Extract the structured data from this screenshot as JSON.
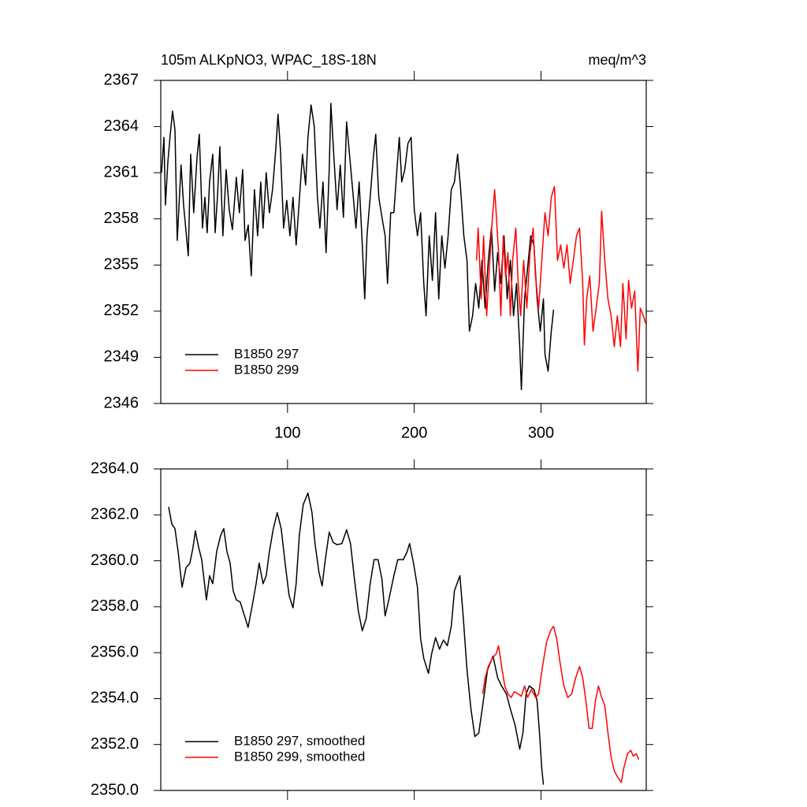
{
  "chart_data": [
    {
      "type": "line",
      "title": "105m ALKpNO3, WPAC_18S-18N",
      "units_label": "meq/m^3",
      "xlim": [
        0,
        383
      ],
      "xticks": [
        100,
        200,
        300
      ],
      "ylim": [
        2346,
        2367
      ],
      "yticks": [
        2346,
        2349,
        2352,
        2355,
        2358,
        2361,
        2364,
        2367
      ],
      "legend": "lower left",
      "series": [
        {
          "name": "B1850 297",
          "color": "#000000",
          "x": [
            0.6,
            2.5,
            3.7,
            5.6,
            7.5,
            9.3,
            11.2,
            13,
            16,
            18,
            21.7,
            23.6,
            26,
            28.6,
            30.4,
            32.9,
            34.8,
            36.6,
            38.5,
            41,
            42.9,
            44.7,
            46.6,
            49,
            51.6,
            54,
            56.5,
            59.6,
            62,
            64.6,
            66.5,
            69,
            71.4,
            73.9,
            76.4,
            78.9,
            80.7,
            83.2,
            85.7,
            88.2,
            90.7,
            92.5,
            94.4,
            96.9,
            99.4,
            101.9,
            104.3,
            106.8,
            109.3,
            111.8,
            114.3,
            116.1,
            118.6,
            121.1,
            123.6,
            125.5,
            128,
            130.4,
            132.9,
            134.2,
            136.6,
            139.1,
            141.6,
            144.1,
            146.6,
            149.1,
            151.6,
            154,
            156.5,
            159,
            160.9,
            162.7,
            165.2,
            167.7,
            169.6,
            172,
            174.5,
            177,
            178.9,
            181.4,
            183.9,
            186.3,
            188.2,
            190.1,
            192.5,
            195,
            197.5,
            200,
            202.5,
            205,
            207.5,
            209.3,
            211.8,
            214.3,
            216.8,
            219.3,
            221.7,
            224.2,
            226.7,
            229.2,
            231.7,
            234.2,
            236.6,
            239.1,
            241.6,
            243.5,
            246,
            248.4,
            250.9,
            253.4,
            255.9,
            258.4,
            260.9,
            263.4,
            265.8,
            268.3,
            270.8,
            273.3,
            275.8,
            278.3,
            280.7,
            283.2,
            284.5,
            287,
            289.4,
            291.9,
            294.4,
            296.9,
            299.4,
            301.9,
            303.1,
            305.6,
            308.1,
            309.9
          ],
          "values": [
            2361,
            2363.3,
            2358.9,
            2361.7,
            2363.5,
            2365,
            2363.8,
            2356.6,
            2361.5,
            2358.9,
            2355.6,
            2362.2,
            2358.4,
            2362,
            2363.5,
            2357.4,
            2359.4,
            2357.1,
            2360.4,
            2362.2,
            2357.1,
            2359.4,
            2362.7,
            2356.9,
            2361.2,
            2358.6,
            2357.3,
            2360.7,
            2358.4,
            2361.2,
            2356.6,
            2357.6,
            2354.3,
            2359.9,
            2356.9,
            2360.4,
            2357.4,
            2361,
            2358.4,
            2359.9,
            2362.5,
            2364.8,
            2362.5,
            2357.4,
            2359.2,
            2356.9,
            2359.4,
            2356.3,
            2359.2,
            2362.2,
            2360.2,
            2363.3,
            2365.4,
            2364,
            2359.4,
            2357.4,
            2360.4,
            2355.8,
            2361.2,
            2365.5,
            2362,
            2358.6,
            2361.5,
            2358.1,
            2364.3,
            2362,
            2359.7,
            2357.4,
            2360.4,
            2356.3,
            2352.8,
            2356.9,
            2359.4,
            2362,
            2363.5,
            2359.4,
            2358.1,
            2356.9,
            2353.8,
            2358.4,
            2358.4,
            2361.2,
            2363.3,
            2360.4,
            2361.2,
            2362.9,
            2363.3,
            2358.6,
            2356.9,
            2358.4,
            2353.8,
            2351.7,
            2356.9,
            2354,
            2358.4,
            2352.8,
            2356.9,
            2354.8,
            2356.9,
            2359.9,
            2360.4,
            2362.2,
            2359.9,
            2356.9,
            2355.3,
            2350.7,
            2351.7,
            2353.8,
            2352.2,
            2355.3,
            2352.2,
            2355.3,
            2357.4,
            2353.3,
            2355.8,
            2353.8,
            2356.9,
            2352.8,
            2355.3,
            2351.7,
            2353.8,
            2349.7,
            2346.9,
            2352.8,
            2354.8,
            2356.9,
            2356.3,
            2352.8,
            2350.7,
            2352.8,
            2349.2,
            2348.1,
            2350.7,
            2352.1
          ]
        },
        {
          "name": "B1850 299",
          "color": "#ff0000",
          "x": [
            249.1,
            250.4,
            252.8,
            254.7,
            257.1,
            259.6,
            261.5,
            263.4,
            264.6,
            266.5,
            268.3,
            270.2,
            272,
            273.9,
            275.8,
            277.6,
            280.1,
            282,
            283.9,
            286.3,
            288.8,
            291.3,
            293.8,
            295.6,
            298.1,
            300.6,
            303.1,
            305.6,
            308.1,
            310.6,
            313,
            315.5,
            318,
            320.5,
            323,
            325.5,
            328,
            330.4,
            332.9,
            334.2,
            336,
            338.5,
            341,
            343.5,
            346,
            347.8,
            350.3,
            352.8,
            355.3,
            357.8,
            360.2,
            362.7,
            364.6,
            367.1,
            369.1,
            371.4,
            373.9,
            376.4,
            378.3,
            380.7,
            382.6
          ],
          "values": [
            2355.3,
            2357.4,
            2352.8,
            2356.9,
            2351.7,
            2355.3,
            2357.9,
            2359.9,
            2358.4,
            2355.8,
            2351.7,
            2356.9,
            2354.3,
            2355.8,
            2351.7,
            2355.3,
            2357.4,
            2353.8,
            2351.7,
            2355.3,
            2352.2,
            2355.8,
            2357.4,
            2354.3,
            2352.2,
            2355.3,
            2358.4,
            2356.9,
            2359.4,
            2360.1,
            2355.3,
            2356.3,
            2354.8,
            2356.3,
            2353.8,
            2355.3,
            2356.9,
            2357.4,
            2353.8,
            2349.8,
            2352.8,
            2354.3,
            2350.7,
            2352.2,
            2353.8,
            2358.5,
            2355.3,
            2352.8,
            2351.7,
            2349.7,
            2351.7,
            2349.7,
            2353.8,
            2350.2,
            2354,
            2352.2,
            2353.3,
            2348.1,
            2352.2,
            2351.7,
            2351.2
          ]
        }
      ]
    },
    {
      "type": "line",
      "xlim": [
        0,
        383
      ],
      "xticks": [
        100,
        200,
        300
      ],
      "xtick_labels": false,
      "ylim": [
        2350,
        2364
      ],
      "yticks": [
        {
          "value": 2350,
          "label": "2350.0"
        },
        {
          "value": 2352,
          "label": "2352.0"
        },
        {
          "value": 2354,
          "label": "2354.0"
        },
        {
          "value": 2356,
          "label": "2356.0"
        },
        {
          "value": 2358,
          "label": "2358.0"
        },
        {
          "value": 2360,
          "label": "2360.0"
        },
        {
          "value": 2362,
          "label": "2362.0"
        },
        {
          "value": 2364,
          "label": "2364.0"
        }
      ],
      "legend": "lower left",
      "series": [
        {
          "name": "B1850 297, smoothed",
          "color": "#000000",
          "x": [
            6.2,
            8.7,
            11.2,
            13.7,
            16.8,
            19.9,
            23,
            25.5,
            27.3,
            29.8,
            32.3,
            36,
            38.5,
            41,
            44.1,
            47.2,
            49.7,
            52.2,
            54.7,
            57.1,
            59.6,
            62.7,
            65.8,
            68.9,
            72,
            75.2,
            77.6,
            80.7,
            83.2,
            85.7,
            88.8,
            91.9,
            95,
            98.1,
            101.2,
            104.3,
            106.8,
            109.3,
            112.4,
            116.1,
            119.3,
            121.7,
            124.8,
            127.3,
            129.8,
            132.9,
            136,
            139.1,
            142.9,
            146.6,
            149.7,
            152.8,
            155.9,
            159,
            162.1,
            165.2,
            168.3,
            171.4,
            174.5,
            177,
            180.1,
            183.9,
            187,
            191.3,
            194.4,
            196.3,
            199.4,
            202.5,
            205,
            207.5,
            211.2,
            213.7,
            216.8,
            219.9,
            223,
            226.1,
            229.2,
            231.7,
            236,
            238.5,
            241.6,
            244.7,
            247.8,
            250.9,
            254,
            257.8,
            262.1,
            265.8,
            268.9,
            272.7,
            275.8,
            279.5,
            283.2,
            285.7,
            288.2,
            290.7,
            294.4,
            296.9,
            298.8,
            300.6,
            301.9
          ],
          "values": [
            2362.35,
            2361.6,
            2361.4,
            2360.4,
            2358.85,
            2359.7,
            2359.9,
            2360.6,
            2361.3,
            2360.6,
            2360.05,
            2358.3,
            2359.35,
            2359,
            2360.4,
            2361.1,
            2361.4,
            2360.4,
            2359.9,
            2358.7,
            2358.3,
            2358.2,
            2357.65,
            2357.1,
            2358,
            2359,
            2359.9,
            2359,
            2359.35,
            2360.4,
            2361.4,
            2362.1,
            2361.4,
            2359.9,
            2358.5,
            2357.95,
            2359,
            2361.1,
            2362.45,
            2362.95,
            2362.1,
            2360.75,
            2359.5,
            2358.9,
            2360.05,
            2361.25,
            2360.8,
            2360.7,
            2360.75,
            2361.35,
            2360.75,
            2359.2,
            2357.8,
            2356.95,
            2357.5,
            2359,
            2360.05,
            2360.05,
            2359.2,
            2357.6,
            2358.35,
            2359.35,
            2360.05,
            2360.05,
            2360.4,
            2360.75,
            2359.9,
            2358.85,
            2356.6,
            2355.75,
            2355.1,
            2355.95,
            2356.65,
            2356.15,
            2356.55,
            2356.3,
            2357.15,
            2358.7,
            2359.35,
            2357.65,
            2355.25,
            2353.55,
            2352.35,
            2352.5,
            2353.7,
            2355.25,
            2355.85,
            2354.9,
            2354.55,
            2354.2,
            2353.55,
            2352.85,
            2351.8,
            2352.5,
            2354.2,
            2354.55,
            2354.4,
            2353.9,
            2352.5,
            2350.95,
            2350.25
          ]
        },
        {
          "name": "B1850 299, smoothed",
          "color": "#ff0000",
          "x": [
            254,
            255.9,
            258.4,
            261.5,
            264.6,
            266.5,
            268.9,
            271.4,
            273.9,
            276.4,
            278.9,
            282,
            284.5,
            287,
            289.4,
            292.5,
            295.7,
            298.1,
            301.2,
            304.3,
            307.5,
            309.9,
            312.4,
            314.9,
            318,
            321.1,
            324.2,
            327.3,
            330.4,
            332.9,
            335.4,
            337.9,
            340.4,
            342.9,
            345.3,
            347.8,
            350.3,
            352.8,
            355.3,
            357.8,
            360.2,
            363.4,
            365.2,
            368.3,
            370.8,
            372.7,
            375.2,
            377.1
          ],
          "values": [
            2354.2,
            2354.9,
            2355.4,
            2355.75,
            2355.95,
            2356.3,
            2355.4,
            2354.55,
            2354.2,
            2354.05,
            2354.3,
            2354.2,
            2354.1,
            2354.55,
            2354.05,
            2354.4,
            2354.05,
            2354.2,
            2355.4,
            2356.45,
            2356.95,
            2357.15,
            2356.6,
            2355.6,
            2354.55,
            2354.05,
            2354.2,
            2354.9,
            2355.4,
            2354.9,
            2353.9,
            2352.7,
            2352.7,
            2353.9,
            2354.55,
            2354.05,
            2353.7,
            2352.5,
            2351.45,
            2350.85,
            2350.6,
            2350.35,
            2350.95,
            2351.6,
            2351.75,
            2351.5,
            2351.6,
            2351.35
          ]
        }
      ]
    }
  ]
}
